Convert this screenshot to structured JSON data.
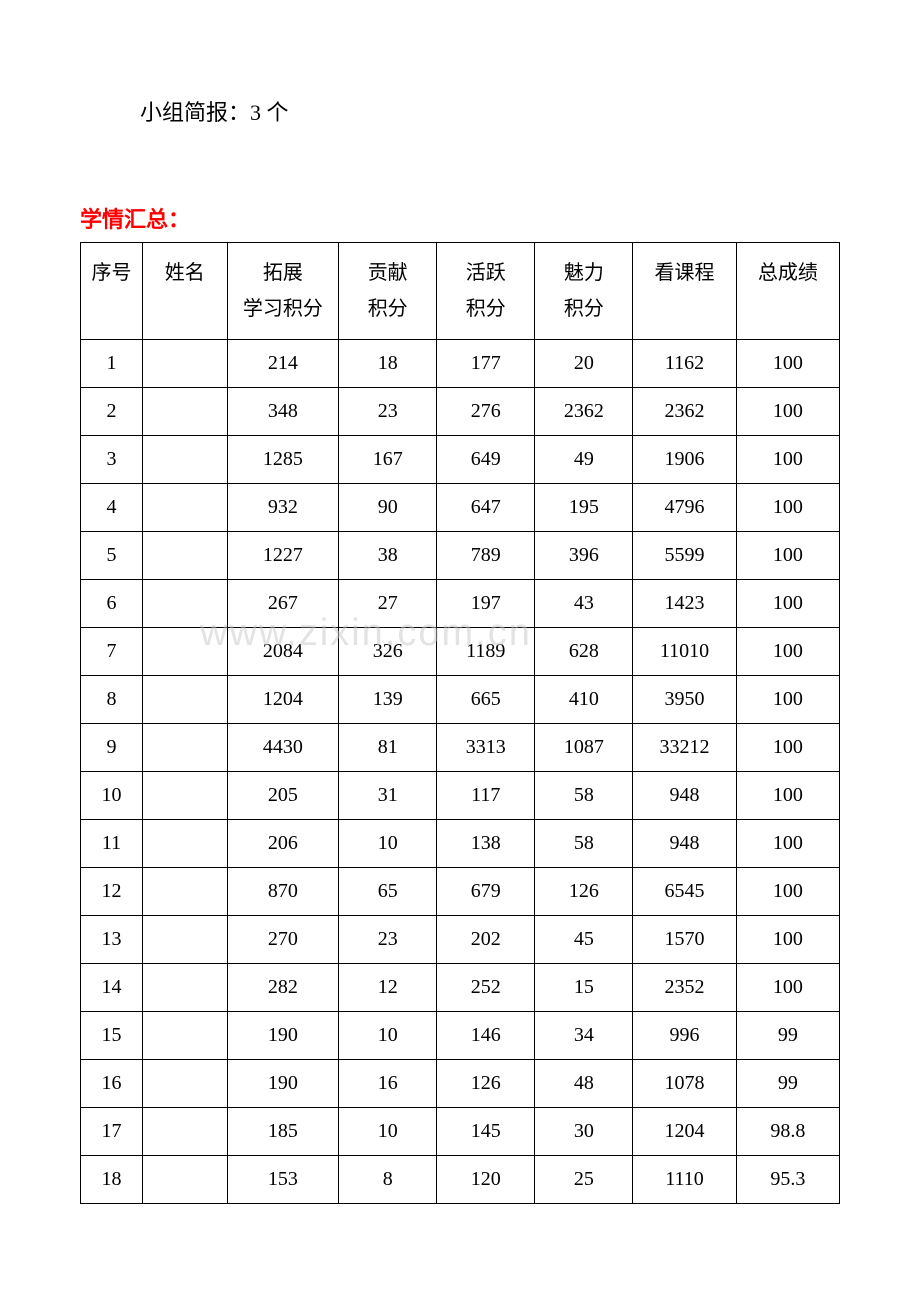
{
  "subtitle": "小组简报：3 个",
  "section_title": "学情汇总：",
  "watermark": "www.zixin.com.cn",
  "table": {
    "columns": [
      "序号",
      "姓名",
      "拓展\n学习积分",
      "贡献\n积分",
      "活跃\n积分",
      "魅力\n积分",
      "看课程",
      "总成绩"
    ],
    "col_line1": [
      "序号",
      "姓名",
      "拓展",
      "贡献",
      "活跃",
      "魅力",
      "看课程",
      "总成绩"
    ],
    "col_line2": [
      "",
      "",
      "学习积分",
      "积分",
      "积分",
      "积分",
      "",
      ""
    ],
    "rows": [
      [
        "1",
        "",
        "214",
        "18",
        "177",
        "20",
        "1162",
        "100"
      ],
      [
        "2",
        "",
        "348",
        "23",
        "276",
        "2362",
        "2362",
        "100"
      ],
      [
        "3",
        "",
        "1285",
        "167",
        "649",
        "49",
        "1906",
        "100"
      ],
      [
        "4",
        "",
        "932",
        "90",
        "647",
        "195",
        "4796",
        "100"
      ],
      [
        "5",
        "",
        "1227",
        "38",
        "789",
        "396",
        "5599",
        "100"
      ],
      [
        "6",
        "",
        "267",
        "27",
        "197",
        "43",
        "1423",
        "100"
      ],
      [
        "7",
        "",
        "2084",
        "326",
        "1189",
        "628",
        "11010",
        "100"
      ],
      [
        "8",
        "",
        "1204",
        "139",
        "665",
        "410",
        "3950",
        "100"
      ],
      [
        "9",
        "",
        "4430",
        "81",
        "3313",
        "1087",
        "33212",
        "100"
      ],
      [
        "10",
        "",
        "205",
        "31",
        "117",
        "58",
        "948",
        "100"
      ],
      [
        "11",
        "",
        "206",
        "10",
        "138",
        "58",
        "948",
        "100"
      ],
      [
        "12",
        "",
        "870",
        "65",
        "679",
        "126",
        "6545",
        "100"
      ],
      [
        "13",
        "",
        "270",
        "23",
        "202",
        "45",
        "1570",
        "100"
      ],
      [
        "14",
        "",
        "282",
        "12",
        "252",
        "15",
        "2352",
        "100"
      ],
      [
        "15",
        "",
        "190",
        "10",
        "146",
        "34",
        "996",
        "99"
      ],
      [
        "16",
        "",
        "190",
        "16",
        "126",
        "48",
        "1078",
        "99"
      ],
      [
        "17",
        "",
        "185",
        "10",
        "145",
        "30",
        "1204",
        "98.8"
      ],
      [
        "18",
        "",
        "153",
        "8",
        "120",
        "25",
        "1110",
        "95.3"
      ]
    ]
  },
  "styling": {
    "background_color": "#ffffff",
    "text_color": "#000000",
    "title_color": "#ff0000",
    "border_color": "#000000",
    "watermark_color": "rgba(200,200,200,0.5)",
    "body_fontsize": 20,
    "title_fontsize": 22
  }
}
